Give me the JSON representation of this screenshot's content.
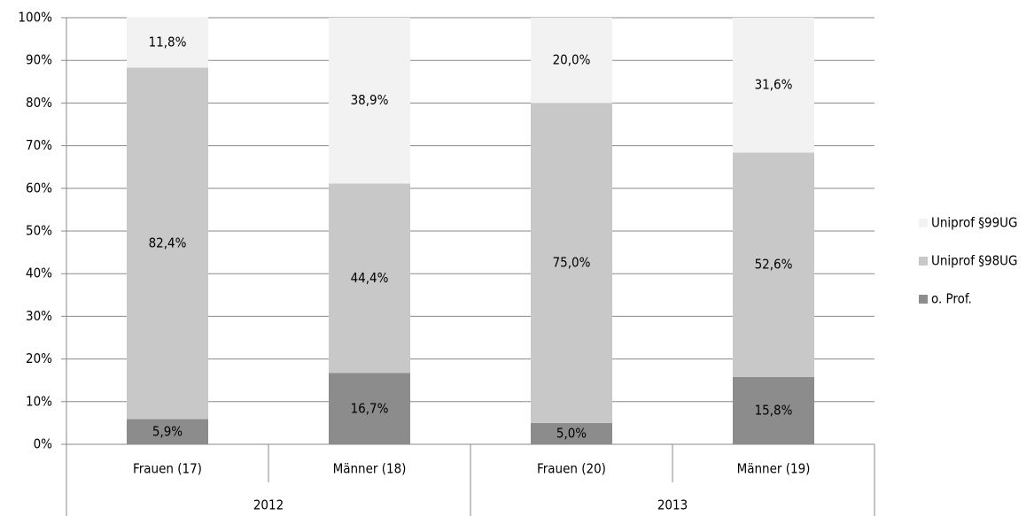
{
  "chart_data": {
    "type": "stacked_bar",
    "categories": [
      "Frauen (17)",
      "Männer (18)",
      "Frauen (20)",
      "Männer (19)"
    ],
    "groups": [
      "2012",
      "2013"
    ],
    "series": [
      {
        "name": "o. Prof.",
        "color": "#8c8c8c",
        "values": [
          5.9,
          16.7,
          5.0,
          15.8
        ],
        "value_labels": [
          "5,9%",
          "16,7%",
          "5,0%",
          "15,8%"
        ]
      },
      {
        "name": "Uniprof §98UG",
        "color": "#c8c8c8",
        "values": [
          82.4,
          44.4,
          75.0,
          52.6
        ],
        "value_labels": [
          "82,4%",
          "44,4%",
          "75,0%",
          "52,6%"
        ]
      },
      {
        "name": "Uniprof §99UG",
        "color": "#f2f2f2",
        "values": [
          11.8,
          38.9,
          20.0,
          31.6
        ],
        "value_labels": [
          "11,8%",
          "38,9%",
          "20,0%",
          "31,6%"
        ]
      }
    ],
    "ylim": [
      0,
      100
    ],
    "yticks": [
      {
        "value": 0,
        "label": "0%"
      },
      {
        "value": 10,
        "label": "10%"
      },
      {
        "value": 20,
        "label": "20%"
      },
      {
        "value": 30,
        "label": "30%"
      },
      {
        "value": 40,
        "label": "40%"
      },
      {
        "value": 50,
        "label": "50%"
      },
      {
        "value": 60,
        "label": "60%"
      },
      {
        "value": 70,
        "label": "70%"
      },
      {
        "value": 80,
        "label": "80%"
      },
      {
        "value": 90,
        "label": "90%"
      },
      {
        "value": 100,
        "label": "100%"
      }
    ],
    "grid": true,
    "legend": "right"
  }
}
